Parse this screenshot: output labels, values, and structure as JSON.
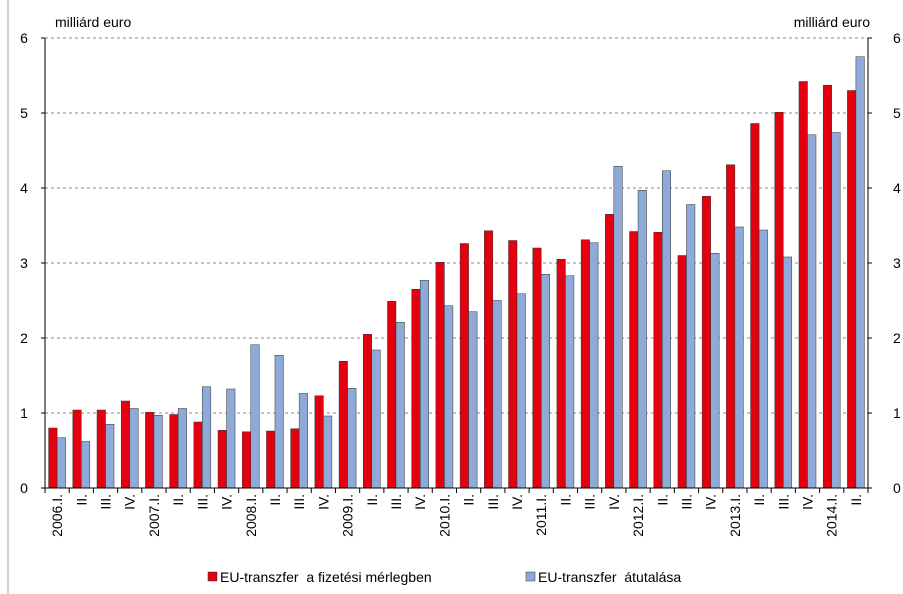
{
  "chart_data": {
    "type": "bar",
    "y_unit_label": "milliárd euro",
    "y2_unit_label": "milliárd euro",
    "categories": [
      "2006.I.",
      "II.",
      "III.",
      "IV.",
      "2007.I.",
      "II.",
      "III.",
      "IV.",
      "2008.I.",
      "II.",
      "III.",
      "IV.",
      "2009.I.",
      "II.",
      "III.",
      "IV.",
      "2010.I.",
      "II.",
      "III.",
      "IV.",
      "2011.I.",
      "II.",
      "III.",
      "IV.",
      "2012.I.",
      "II.",
      "III.",
      "IV.",
      "2013.I.",
      "II.",
      "III.",
      "IV.",
      "2014.I.",
      "II."
    ],
    "series": [
      {
        "name": "EU-transzfer  a fizetési mérlegben",
        "color": "#e3000f",
        "values": [
          0.8,
          1.04,
          1.04,
          1.16,
          1.01,
          0.98,
          0.88,
          0.77,
          0.75,
          0.76,
          0.79,
          1.23,
          1.69,
          2.05,
          2.49,
          2.65,
          3.01,
          3.26,
          3.43,
          3.3,
          3.2,
          3.05,
          3.31,
          3.65,
          3.42,
          3.41,
          3.1,
          3.89,
          4.31,
          4.86,
          5.01,
          5.42,
          5.37,
          5.3
        ]
      },
      {
        "name": "EU-transzfer  átutalása",
        "color": "#8eaad8",
        "values": [
          0.67,
          0.62,
          0.85,
          1.06,
          0.97,
          1.06,
          1.35,
          1.32,
          1.91,
          1.77,
          1.26,
          0.96,
          1.33,
          1.84,
          2.21,
          2.77,
          2.43,
          2.35,
          2.5,
          2.59,
          2.85,
          2.83,
          3.27,
          4.29,
          3.97,
          4.23,
          3.78,
          3.13,
          3.48,
          3.44,
          3.08,
          4.71,
          4.74,
          5.75
        ]
      }
    ],
    "ylim": [
      0,
      6
    ],
    "yticks": [
      0,
      1,
      2,
      3,
      4,
      5,
      6
    ],
    "y2lim": [
      0,
      6
    ],
    "y2ticks": [
      0,
      1,
      2,
      3,
      4,
      5,
      6
    ],
    "grid": true,
    "legend": "bottom"
  }
}
